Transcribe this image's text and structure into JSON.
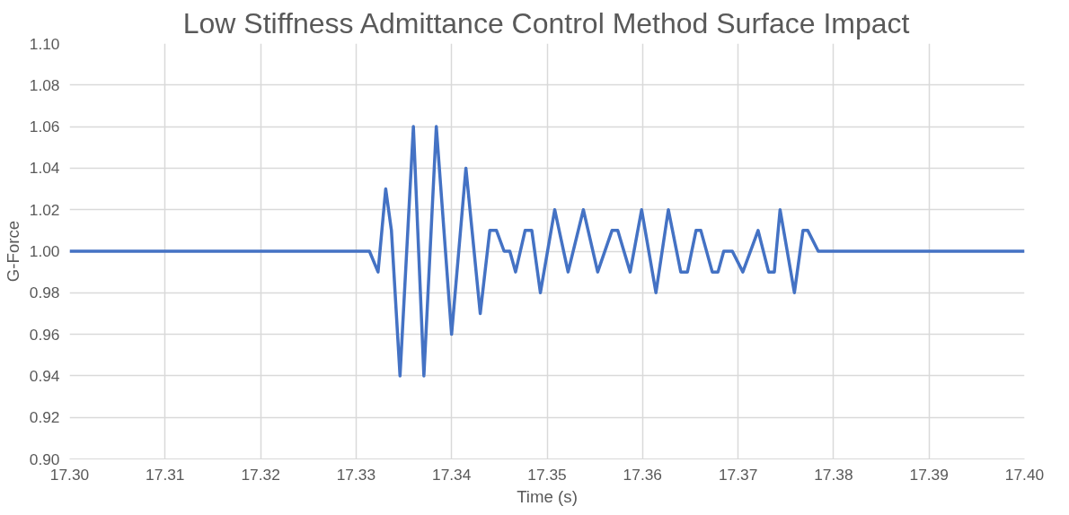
{
  "chart_data": {
    "type": "line",
    "title": "Low Stiffness Admittance Control Method Surface Impact",
    "xlabel": "Time (s)",
    "ylabel": "G-Force",
    "x": [
      17.3,
      17.3312,
      17.3314,
      17.3323,
      17.3331,
      17.3337,
      17.3346,
      17.336,
      17.3371,
      17.3384,
      17.34,
      17.3415,
      17.343,
      17.344,
      17.3447,
      17.3455,
      17.3461,
      17.3467,
      17.3477,
      17.3484,
      17.3493,
      17.3508,
      17.3522,
      17.3538,
      17.3553,
      17.3568,
      17.3574,
      17.3587,
      17.3599,
      17.3614,
      17.3627,
      17.364,
      17.3647,
      17.3656,
      17.3661,
      17.3673,
      17.3679,
      17.3685,
      17.3694,
      17.3705,
      17.3721,
      17.3732,
      17.3738,
      17.3744,
      17.3759,
      17.3768,
      17.3773,
      17.3784,
      17.4
    ],
    "series": [
      {
        "color": "#4472c4",
        "values": [
          1.0,
          1.0,
          1.0,
          0.99,
          1.03,
          1.01,
          0.94,
          1.06,
          0.94,
          1.06,
          0.96,
          1.04,
          0.97,
          1.01,
          1.01,
          1.0,
          1.0,
          0.99,
          1.01,
          1.01,
          0.98,
          1.02,
          0.99,
          1.02,
          0.99,
          1.01,
          1.01,
          0.99,
          1.02,
          0.98,
          1.02,
          0.99,
          0.99,
          1.01,
          1.01,
          0.99,
          0.99,
          1.0,
          1.0,
          0.99,
          1.01,
          0.99,
          0.99,
          1.02,
          0.98,
          1.01,
          1.01,
          1.0,
          1.0
        ]
      }
    ],
    "xlim": [
      17.3,
      17.4
    ],
    "xticks": [
      {
        "value": 17.3,
        "label": "17.30"
      },
      17.31,
      17.32,
      17.33,
      17.34,
      17.35,
      17.36,
      17.37,
      17.38,
      17.39,
      {
        "value": 17.4,
        "label": "17.40"
      }
    ],
    "ylim": [
      0.9,
      1.1
    ],
    "yticks": [
      {
        "value": 0.9,
        "label": "0.90"
      },
      0.92,
      0.94,
      0.96,
      0.98,
      {
        "value": 1.0,
        "label": "1.00"
      },
      1.02,
      1.04,
      1.06,
      1.08,
      {
        "value": 1.1,
        "label": "1.10"
      }
    ],
    "grid": true,
    "line_style": "solid"
  }
}
